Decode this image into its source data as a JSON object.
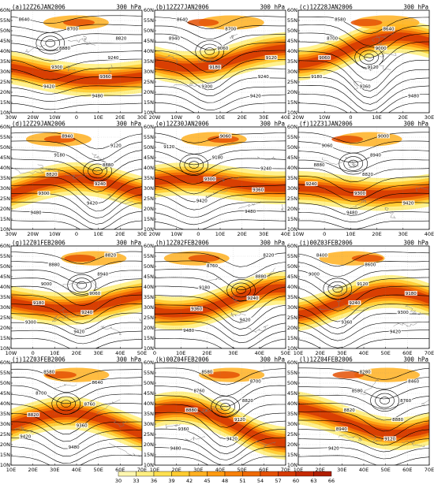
{
  "level_label": "300 hPa",
  "colorbar": {
    "ticks": [
      "30",
      "33",
      "36",
      "39",
      "42",
      "45",
      "48",
      "51",
      "54",
      "57",
      "60",
      "63",
      "66"
    ],
    "colors": [
      "#fff7b0",
      "#ffef80",
      "#ffe050",
      "#ffcc30",
      "#ffb020",
      "#ff9a10",
      "#f88008",
      "#ef6a05",
      "#e55003",
      "#d63a02",
      "#c62a01",
      "#b01e00"
    ]
  },
  "panels": [
    {
      "id": "a",
      "title": "(a)12Z26JAN2006",
      "xticks": [
        "30W",
        "20W",
        "10W",
        "0",
        "10E",
        "20E",
        "30E"
      ],
      "yticks": [
        "10N",
        "15N",
        "20N",
        "25N",
        "30N",
        "35N",
        "40N",
        "45N",
        "50N",
        "55N",
        "60N"
      ],
      "contour_labels": [
        "8640",
        "8700",
        "8820",
        "8880",
        "9240",
        "9300",
        "9360",
        "9420",
        "9480"
      ]
    },
    {
      "id": "b",
      "title": "(b)12Z27JAN2006",
      "xticks": [
        "20W",
        "10W",
        "0",
        "10E",
        "20E",
        "30E",
        "40E"
      ],
      "yticks": [
        "10N",
        "15N",
        "20N",
        "25N",
        "30N",
        "35N",
        "40N",
        "45N",
        "50N",
        "55N",
        "60N"
      ],
      "contour_labels": [
        "8640",
        "8700",
        "8940",
        "9060",
        "9120",
        "9180",
        "9240",
        "9300",
        "9420"
      ]
    },
    {
      "id": "c",
      "title": "(c)12Z28JAN2006",
      "xticks": [
        "20W",
        "10W",
        "0",
        "10E",
        "20E",
        "30E"
      ],
      "yticks": [
        "10N",
        "15N",
        "20N",
        "25N",
        "30N",
        "35N",
        "40N",
        "45N",
        "50N",
        "55N",
        "60N"
      ],
      "contour_labels": [
        "8580",
        "8640",
        "8700",
        "9000",
        "9060",
        "9120",
        "9180",
        "9360",
        "9480"
      ]
    },
    {
      "id": "d",
      "title": "(d)12Z29JAN2006",
      "xticks": [
        "30W",
        "20W",
        "10W",
        "0",
        "10E",
        "20E",
        "30E"
      ],
      "yticks": [
        "10N",
        "15N",
        "20N",
        "25N",
        "30N",
        "35N",
        "40N",
        "45N",
        "50N",
        "55N",
        "60N"
      ],
      "contour_labels": [
        "8940",
        "9120",
        "9180",
        "8880",
        "8820",
        "9240",
        "9300",
        "9420",
        "9480"
      ]
    },
    {
      "id": "e",
      "title": "(e)12Z30JAN2006",
      "xticks": [
        "20W",
        "10W",
        "0",
        "10E",
        "20E",
        "30E",
        "40E"
      ],
      "yticks": [
        "10N",
        "15N",
        "20N",
        "25N",
        "30N",
        "35N",
        "40N",
        "45N",
        "50N",
        "55N",
        "60N"
      ],
      "contour_labels": [
        "9060",
        "9120",
        "9180",
        "9240",
        "9300",
        "9360",
        "9420",
        "9480"
      ]
    },
    {
      "id": "f",
      "title": "(f)12Z31JAN2006",
      "xticks": [
        "10W",
        "0",
        "10E",
        "20E",
        "30E",
        "40E"
      ],
      "yticks": [
        "10N",
        "15N",
        "20N",
        "25N",
        "30N",
        "35N",
        "40N",
        "45N",
        "50N",
        "55N",
        "60N"
      ],
      "contour_labels": [
        "9000",
        "9060",
        "8940",
        "8880",
        "8820",
        "9240",
        "9300",
        "9420",
        "9480"
      ]
    },
    {
      "id": "g",
      "title": "(g)12Z01FEB2006",
      "xticks": [
        "10W",
        "0",
        "10E",
        "20E",
        "30E",
        "40E",
        "50E"
      ],
      "yticks": [
        "10N",
        "15N",
        "20N",
        "25N",
        "30N",
        "35N",
        "40N",
        "45N",
        "50N",
        "55N",
        "60N"
      ],
      "contour_labels": [
        "8820",
        "8880",
        "8940",
        "9000",
        "9060",
        "9180",
        "9240",
        "9300",
        "9420"
      ]
    },
    {
      "id": "h",
      "title": "(h)12Z02FEB2006",
      "xticks": [
        "0",
        "10E",
        "20E",
        "30E",
        "40E",
        "50E"
      ],
      "yticks": [
        "10N",
        "15N",
        "20N",
        "25N",
        "30N",
        "35N",
        "40N",
        "45N",
        "50N",
        "55N",
        "60N"
      ],
      "contour_labels": [
        "8220",
        "8760",
        "8880",
        "9180",
        "9240",
        "9360",
        "9420",
        "9480"
      ]
    },
    {
      "id": "i",
      "title": "(i)00Z03FEB2006",
      "xticks": [
        "10E",
        "20E",
        "30E",
        "40E",
        "50E",
        "60E",
        "70E"
      ],
      "yticks": [
        "10N",
        "15N",
        "20N",
        "25N",
        "30N",
        "35N",
        "40N",
        "45N",
        "50N",
        "55N",
        "60N"
      ],
      "contour_labels": [
        "8400",
        "8600",
        "9000",
        "9120",
        "9180",
        "9240",
        "9300",
        "9360",
        "9420"
      ]
    },
    {
      "id": "j",
      "title": "(j)12Z03FEB2006",
      "xticks": [
        "10E",
        "20E",
        "30E",
        "40E",
        "50E",
        "60E",
        "70E"
      ],
      "yticks": [
        "10N",
        "15N",
        "20N",
        "25N",
        "30N",
        "35N",
        "40N",
        "45N",
        "50N",
        "55N",
        "60N"
      ],
      "contour_labels": [
        "8580",
        "8640",
        "8700",
        "8760",
        "8820",
        "9360",
        "9420",
        "9480"
      ]
    },
    {
      "id": "k",
      "title": "(k)00Z04FEB2006",
      "xticks": [
        "10E",
        "20E",
        "30E",
        "40E",
        "50E",
        "60E",
        "70E"
      ],
      "yticks": [
        "10N",
        "15N",
        "20N",
        "25N",
        "30N",
        "35N",
        "40N",
        "45N",
        "50N",
        "55N",
        "60N"
      ],
      "contour_labels": [
        "8580",
        "8700",
        "8760",
        "8820",
        "8880",
        "9120",
        "9360",
        "9420",
        "9480"
      ]
    },
    {
      "id": "l",
      "title": "(l)12Z04FEB2006",
      "xticks": [
        "10E",
        "20E",
        "30E",
        "40E",
        "50E",
        "60E",
        "70E"
      ],
      "yticks": [
        "10N",
        "15N",
        "20N",
        "25N",
        "30N",
        "35N",
        "40N",
        "45N",
        "50N",
        "55N",
        "60N"
      ],
      "contour_labels": [
        "8280",
        "8460",
        "8580",
        "8760",
        "8820",
        "8880",
        "8940",
        "9120",
        "9420"
      ]
    }
  ]
}
